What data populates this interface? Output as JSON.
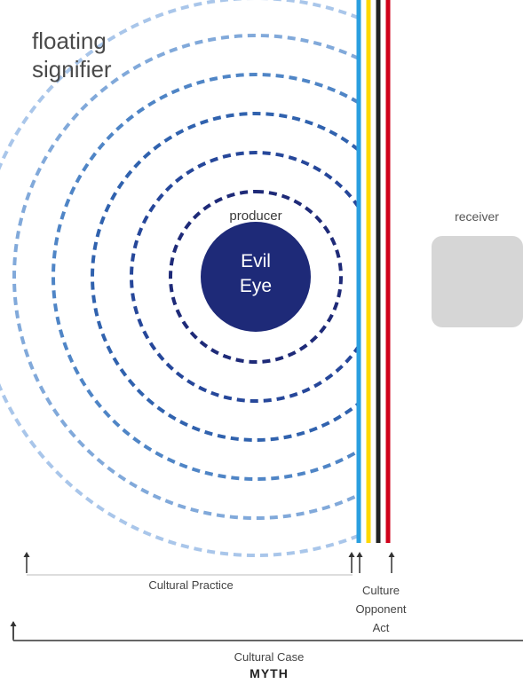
{
  "title": {
    "line1": "floating",
    "line2": "signifier"
  },
  "center": {
    "role": "producer",
    "line1": "Evil",
    "line2": "Eye"
  },
  "receiver": {
    "label": "receiver"
  },
  "timeline": {
    "practice": "Cultural Practice",
    "opponent_line1": "Culture",
    "opponent_line2": "Opponent",
    "opponent_line3": "Act",
    "case": "Cultural Case",
    "myth": "MYTH"
  },
  "colors": {
    "core": "#1e2a78",
    "rings": [
      "#1e2a78",
      "#26479a",
      "#3062ae",
      "#4f85c6",
      "#81a9da",
      "#a9c6ea"
    ],
    "stripes": [
      "#2a9fe0",
      "#ffd800",
      "#222222",
      "#d0021b"
    ],
    "receiver": "#d6d6d6"
  }
}
